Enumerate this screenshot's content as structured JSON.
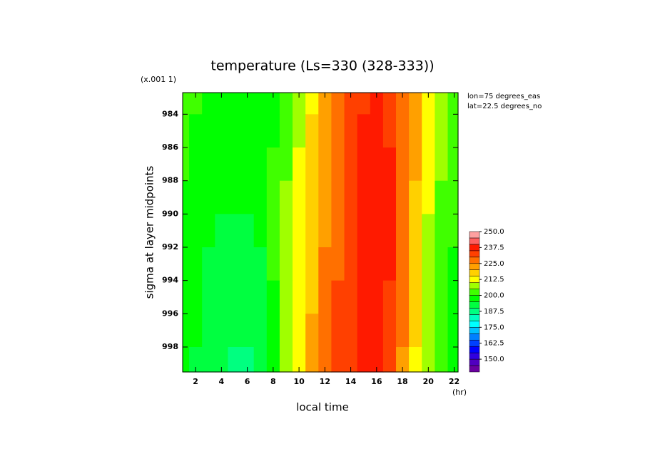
{
  "chart_data": {
    "type": "contour",
    "title": "temperature (Ls=330 (328-333))",
    "y_unit": "(x.001 1)",
    "x_unit": "(hr)",
    "xlabel": "local time",
    "ylabel": "sigma at layer midpoints",
    "annotations": [
      "lon=75 degrees_eas",
      "lat=22.5 degrees_no"
    ],
    "x": [
      1,
      2,
      3,
      4,
      5,
      6,
      7,
      8,
      9,
      10,
      11,
      12,
      13,
      14,
      15,
      16,
      17,
      18,
      19,
      20,
      21,
      22
    ],
    "y": [
      983,
      985,
      987,
      989,
      991,
      993,
      995,
      997,
      999
    ],
    "z": [
      [
        201,
        200,
        198,
        196,
        196,
        196,
        196,
        199,
        203,
        208,
        214,
        222,
        228,
        232,
        234,
        235,
        234,
        228,
        222,
        214,
        207,
        202
      ],
      [
        200,
        199,
        197,
        196,
        196,
        196,
        196,
        199,
        204,
        209,
        215,
        223,
        228,
        232,
        235,
        236,
        234,
        228,
        221,
        213,
        206,
        202
      ],
      [
        200,
        198,
        197,
        195,
        195,
        195,
        196,
        200,
        204,
        210,
        216,
        223,
        229,
        233,
        235,
        236,
        235,
        227,
        220,
        212,
        205,
        201
      ],
      [
        199,
        197,
        196,
        195,
        195,
        195,
        195,
        200,
        205,
        210,
        217,
        224,
        229,
        233,
        236,
        237,
        235,
        227,
        218,
        210,
        204,
        201
      ],
      [
        198,
        196,
        195,
        194,
        194,
        194,
        195,
        200,
        205,
        211,
        218,
        224,
        229,
        233,
        236,
        237,
        235,
        226,
        217,
        209,
        203,
        200
      ],
      [
        198,
        196,
        194,
        193,
        193,
        193,
        194,
        200,
        205,
        211,
        219,
        225,
        229,
        233,
        236,
        237,
        235,
        226,
        216,
        208,
        202,
        199
      ],
      [
        197,
        195,
        194,
        192,
        192,
        192,
        193,
        199,
        206,
        212,
        219,
        225,
        230,
        234,
        237,
        238,
        234,
        225,
        216,
        208,
        202,
        199
      ],
      [
        197,
        195,
        193,
        191,
        190,
        190,
        191,
        199,
        206,
        212,
        220,
        226,
        230,
        234,
        237,
        238,
        234,
        225,
        215,
        207,
        201,
        198
      ],
      [
        196,
        194,
        192,
        190,
        189,
        189,
        190,
        198,
        206,
        212,
        220,
        226,
        230,
        234,
        237,
        238,
        233,
        224,
        214,
        206,
        200,
        197
      ]
    ],
    "xlim": [
      1,
      22.3
    ],
    "ylim": [
      999.5,
      982.7
    ],
    "xticks": [
      2,
      4,
      6,
      8,
      10,
      12,
      14,
      16,
      18,
      20,
      22
    ],
    "yticks": [
      984,
      986,
      988,
      990,
      992,
      994,
      996,
      998
    ],
    "levels": [
      140,
      145,
      150,
      155,
      160,
      165,
      170,
      175,
      180,
      185,
      190,
      195,
      200,
      205,
      210,
      215,
      220,
      225,
      230,
      235,
      240,
      245,
      250
    ],
    "colors": [
      "#6a00a0",
      "#5000c0",
      "#3000e0",
      "#0000ff",
      "#0040ff",
      "#0080ff",
      "#00c0ff",
      "#00ffff",
      "#00ffc0",
      "#00ff80",
      "#00ff40",
      "#00ff00",
      "#40ff00",
      "#a0ff00",
      "#ffff00",
      "#ffd000",
      "#ffa000",
      "#ff7000",
      "#ff4000",
      "#ff1a00",
      "#ff6060",
      "#ffa0a0"
    ],
    "colorbar_ticks": [
      {
        "value": 150,
        "label": "150.0"
      },
      {
        "value": 162.5,
        "label": "162.5"
      },
      {
        "value": 175,
        "label": "175.0"
      },
      {
        "value": 187.5,
        "label": "187.5"
      },
      {
        "value": 200,
        "label": "200.0"
      },
      {
        "value": 212.5,
        "label": "212.5"
      },
      {
        "value": 225,
        "label": "225.0"
      },
      {
        "value": 237.5,
        "label": "237.5"
      },
      {
        "value": 250,
        "label": "250.0"
      }
    ]
  }
}
